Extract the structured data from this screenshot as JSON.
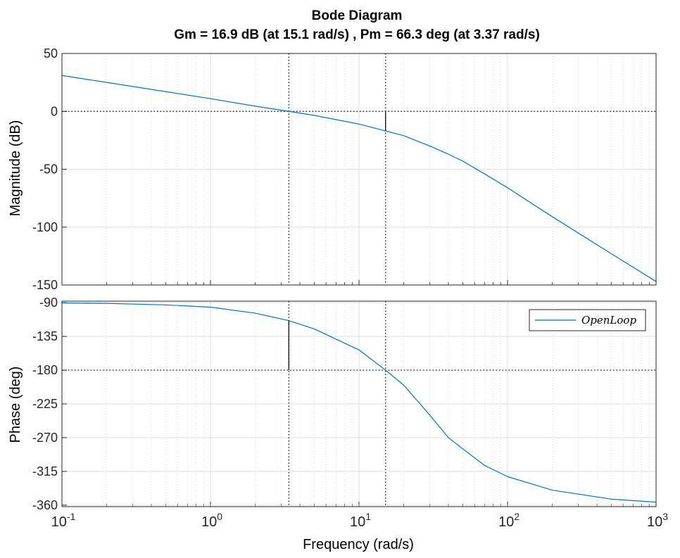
{
  "chart_data": {
    "type": "line",
    "title": "Bode Diagram",
    "subtitle": "Gm = 16.9 dB (at 15.1 rad/s) ,  Pm = 66.3 deg (at 3.37 rad/s)",
    "xlabel": "Frequency  (rad/s)",
    "x_scale": "log",
    "xlim": [
      0.1,
      1000
    ],
    "x_ticks": [
      {
        "base": "10",
        "exp": "-1"
      },
      {
        "base": "10",
        "exp": "0"
      },
      {
        "base": "10",
        "exp": "1"
      },
      {
        "base": "10",
        "exp": "2"
      },
      {
        "base": "10",
        "exp": "3"
      }
    ],
    "grid": true,
    "legend": {
      "entries": [
        "OpenLoop"
      ],
      "position": "top-right"
    },
    "gain_margin": {
      "db": 16.9,
      "frequency": 15.1
    },
    "phase_margin": {
      "deg": 66.3,
      "frequency": 3.37
    },
    "magnitude": {
      "ylabel": "Magnitude (dB)",
      "ylim": [
        -150,
        50
      ],
      "yticks": [
        "50",
        "0",
        "-50",
        "-100",
        "-150"
      ],
      "series": [
        {
          "name": "OpenLoop",
          "color": "#0072BD",
          "x": [
            0.1,
            0.2,
            0.5,
            1,
            2,
            3.37,
            5,
            10,
            15.1,
            20,
            30,
            40,
            50,
            70,
            100,
            200,
            500,
            1000
          ],
          "y": [
            31,
            25,
            17,
            11,
            4.5,
            0,
            -3.5,
            -11,
            -16.9,
            -21,
            -30,
            -37,
            -43,
            -54,
            -66,
            -91,
            -123,
            -147
          ]
        }
      ]
    },
    "phase": {
      "ylabel": "Phase (deg)",
      "ylim": [
        -362,
        -88
      ],
      "yticks": [
        "-90",
        "-135",
        "-180",
        "-225",
        "-270",
        "-315",
        "-360"
      ],
      "series": [
        {
          "name": "OpenLoop",
          "color": "#0072BD",
          "x": [
            0.1,
            0.2,
            0.5,
            1,
            2,
            3.37,
            5,
            10,
            15.1,
            20,
            30,
            40,
            50,
            70,
            100,
            200,
            500,
            1000
          ],
          "y": [
            -90.5,
            -91,
            -93,
            -96,
            -104,
            -114,
            -125,
            -153,
            -180,
            -200,
            -240,
            -270,
            -285,
            -307,
            -322,
            -340,
            -352,
            -356
          ]
        }
      ]
    }
  }
}
